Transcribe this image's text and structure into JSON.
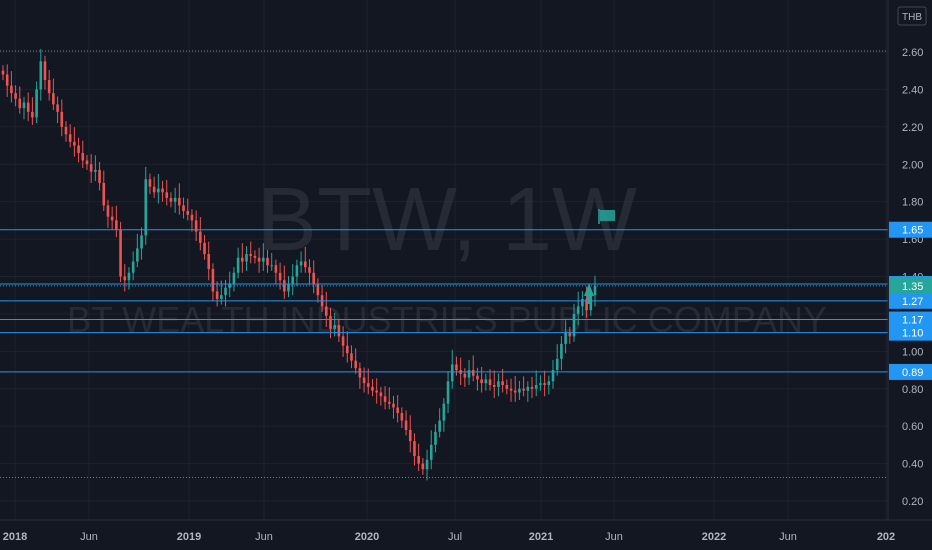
{
  "chart_data": {
    "type": "candlestick",
    "watermark": {
      "symbol": "BTW, 1W",
      "name": "BT WEALTH INDUSTRIES PUBLIC COMPANY"
    },
    "currency": "THB",
    "y_ticks": [
      2.6,
      2.4,
      2.2,
      2.0,
      1.8,
      1.6,
      1.4,
      1.0,
      0.8,
      0.6,
      0.4,
      0.2
    ],
    "ylim": [
      0.12,
      2.78
    ],
    "x_ticks": [
      "2018",
      "Jun",
      "2019",
      "Jun",
      "2020",
      "Jul",
      "2021",
      "Jun",
      "2022",
      "Jun",
      "202"
    ],
    "horizontal_levels": [
      {
        "value": 1.65,
        "label": "1.65"
      },
      {
        "value": 1.36,
        "label": "1.36"
      },
      {
        "value": 1.27,
        "label": "1.27"
      },
      {
        "value": 1.17,
        "label": "1.17"
      },
      {
        "value": 1.1,
        "label": "1.10"
      },
      {
        "value": 0.89,
        "label": "0.89"
      }
    ],
    "dotted_levels": [
      2.6,
      0.32
    ],
    "current_price": {
      "value": 1.35,
      "label": "1.35"
    },
    "colors": {
      "up": "#26a69a",
      "down": "#ef5350",
      "level": "#2196f3",
      "background": "#131722"
    },
    "series_close": [
      2.48,
      2.42,
      2.38,
      2.35,
      2.3,
      2.33,
      2.28,
      2.25,
      2.4,
      2.55,
      2.45,
      2.38,
      2.32,
      2.28,
      2.2,
      2.16,
      2.12,
      2.1,
      2.06,
      2.02,
      2.0,
      1.96,
      1.97,
      1.9,
      1.78,
      1.72,
      1.7,
      1.65,
      1.4,
      1.38,
      1.42,
      1.48,
      1.55,
      1.62,
      1.92,
      1.88,
      1.85,
      1.87,
      1.85,
      1.82,
      1.8,
      1.82,
      1.78,
      1.75,
      1.73,
      1.7,
      1.64,
      1.58,
      1.52,
      1.44,
      1.32,
      1.28,
      1.3,
      1.34,
      1.36,
      1.42,
      1.5,
      1.48,
      1.52,
      1.51,
      1.5,
      1.48,
      1.5,
      1.46,
      1.46,
      1.42,
      1.38,
      1.32,
      1.36,
      1.4,
      1.46,
      1.48,
      1.45,
      1.42,
      1.36,
      1.3,
      1.24,
      1.19,
      1.12,
      1.14,
      1.08,
      1.03,
      0.99,
      0.95,
      0.91,
      0.86,
      0.83,
      0.81,
      0.79,
      0.78,
      0.76,
      0.73,
      0.72,
      0.7,
      0.67,
      0.63,
      0.58,
      0.52,
      0.44,
      0.4,
      0.37,
      0.42,
      0.5,
      0.57,
      0.63,
      0.72,
      0.84,
      0.93,
      0.9,
      0.88,
      0.86,
      0.9,
      0.87,
      0.85,
      0.83,
      0.85,
      0.82,
      0.81,
      0.84,
      0.82,
      0.8,
      0.79,
      0.78,
      0.8,
      0.79,
      0.81,
      0.8,
      0.82,
      0.83,
      0.82,
      0.84,
      0.9,
      0.96,
      1.04,
      1.1,
      1.08,
      1.2,
      1.24,
      1.28,
      1.22,
      1.3,
      1.35
    ]
  }
}
